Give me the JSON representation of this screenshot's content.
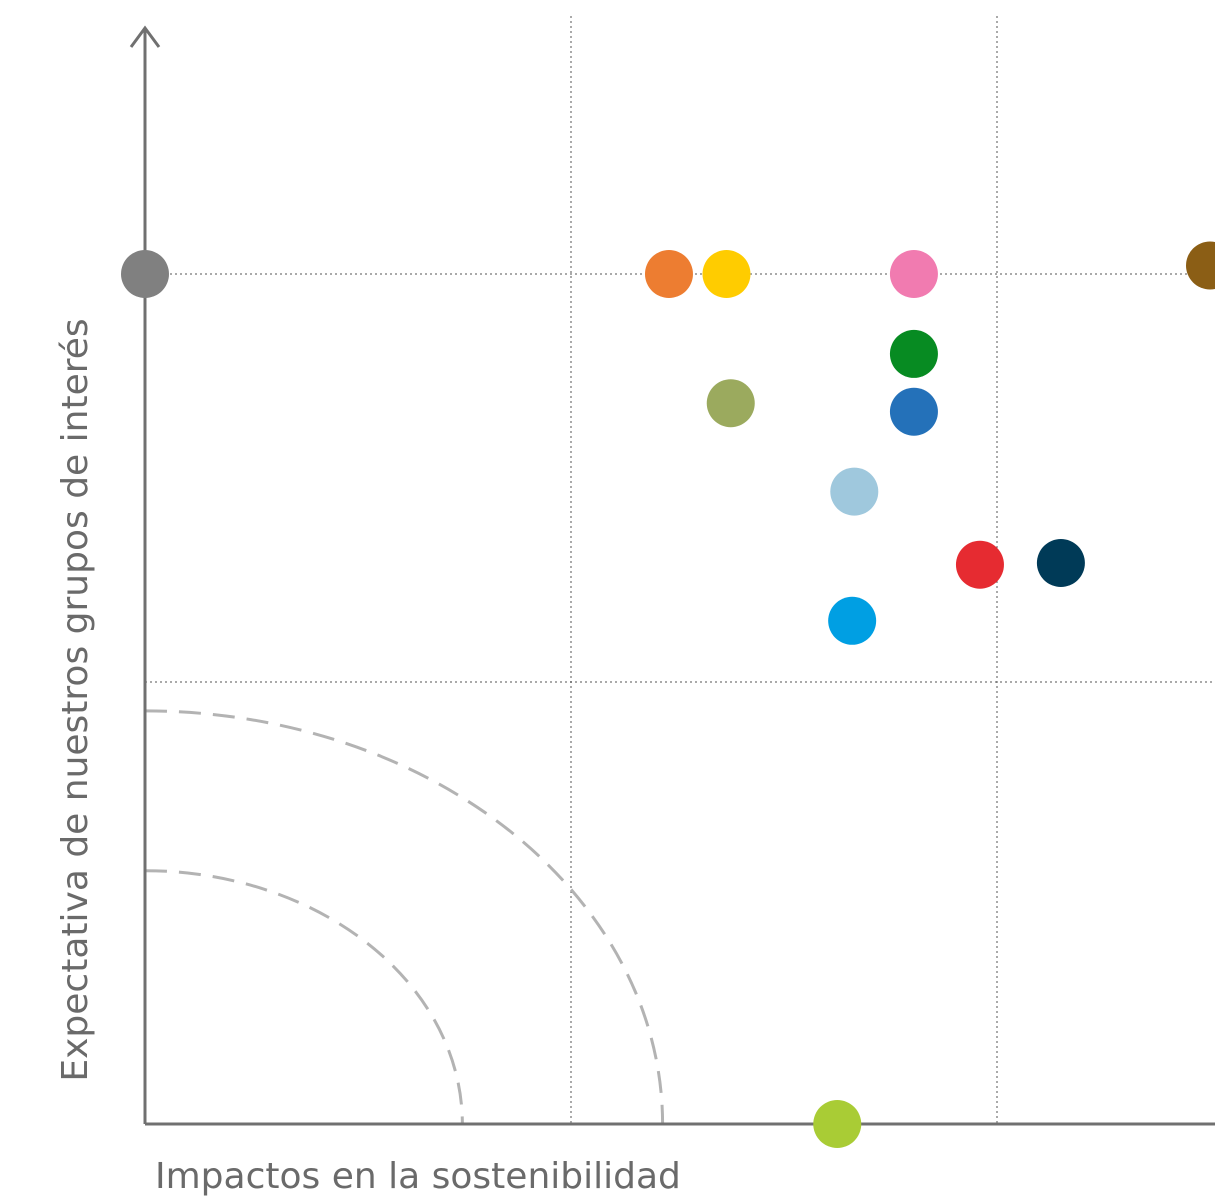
{
  "chart_data": {
    "type": "scatter",
    "title": "",
    "xlabel": "Impactos en la sostenibilidad",
    "ylabel": "Expectativa de nuestros grupos de interés",
    "xlim": [
      0,
      5
    ],
    "ylim": [
      0,
      5
    ],
    "grid": true,
    "x_gridlines": [
      2,
      4
    ],
    "y_gridlines": [
      2.6,
      5
    ],
    "points": [
      {
        "x": 0.0,
        "y": 5.0,
        "color": "#808080"
      },
      {
        "x": 2.46,
        "y": 5.0,
        "color": "#ED7D31"
      },
      {
        "x": 2.73,
        "y": 5.0,
        "color": "#FFCC00"
      },
      {
        "x": 3.61,
        "y": 5.0,
        "color": "#F17BB0"
      },
      {
        "x": 5.0,
        "y": 5.05,
        "color": "#8B5E15"
      },
      {
        "x": 3.61,
        "y": 4.53,
        "color": "#078B22"
      },
      {
        "x": 2.75,
        "y": 4.24,
        "color": "#9BAA5E"
      },
      {
        "x": 3.61,
        "y": 4.19,
        "color": "#2471B9"
      },
      {
        "x": 3.33,
        "y": 3.72,
        "color": "#9FC8DD"
      },
      {
        "x": 3.92,
        "y": 3.29,
        "color": "#E62B31"
      },
      {
        "x": 4.3,
        "y": 3.3,
        "color": "#003A57"
      },
      {
        "x": 3.32,
        "y": 2.96,
        "color": "#009FE3"
      },
      {
        "x": 3.25,
        "y": 0.0,
        "color": "#A9CC35"
      }
    ],
    "threshold_arcs": [
      {
        "radius": 1.49
      },
      {
        "radius": 2.43
      }
    ]
  },
  "colors": {
    "axis": "#707070",
    "grid": "#555555",
    "threshold": "#B3B3B3",
    "text": "#6A6A6A"
  }
}
